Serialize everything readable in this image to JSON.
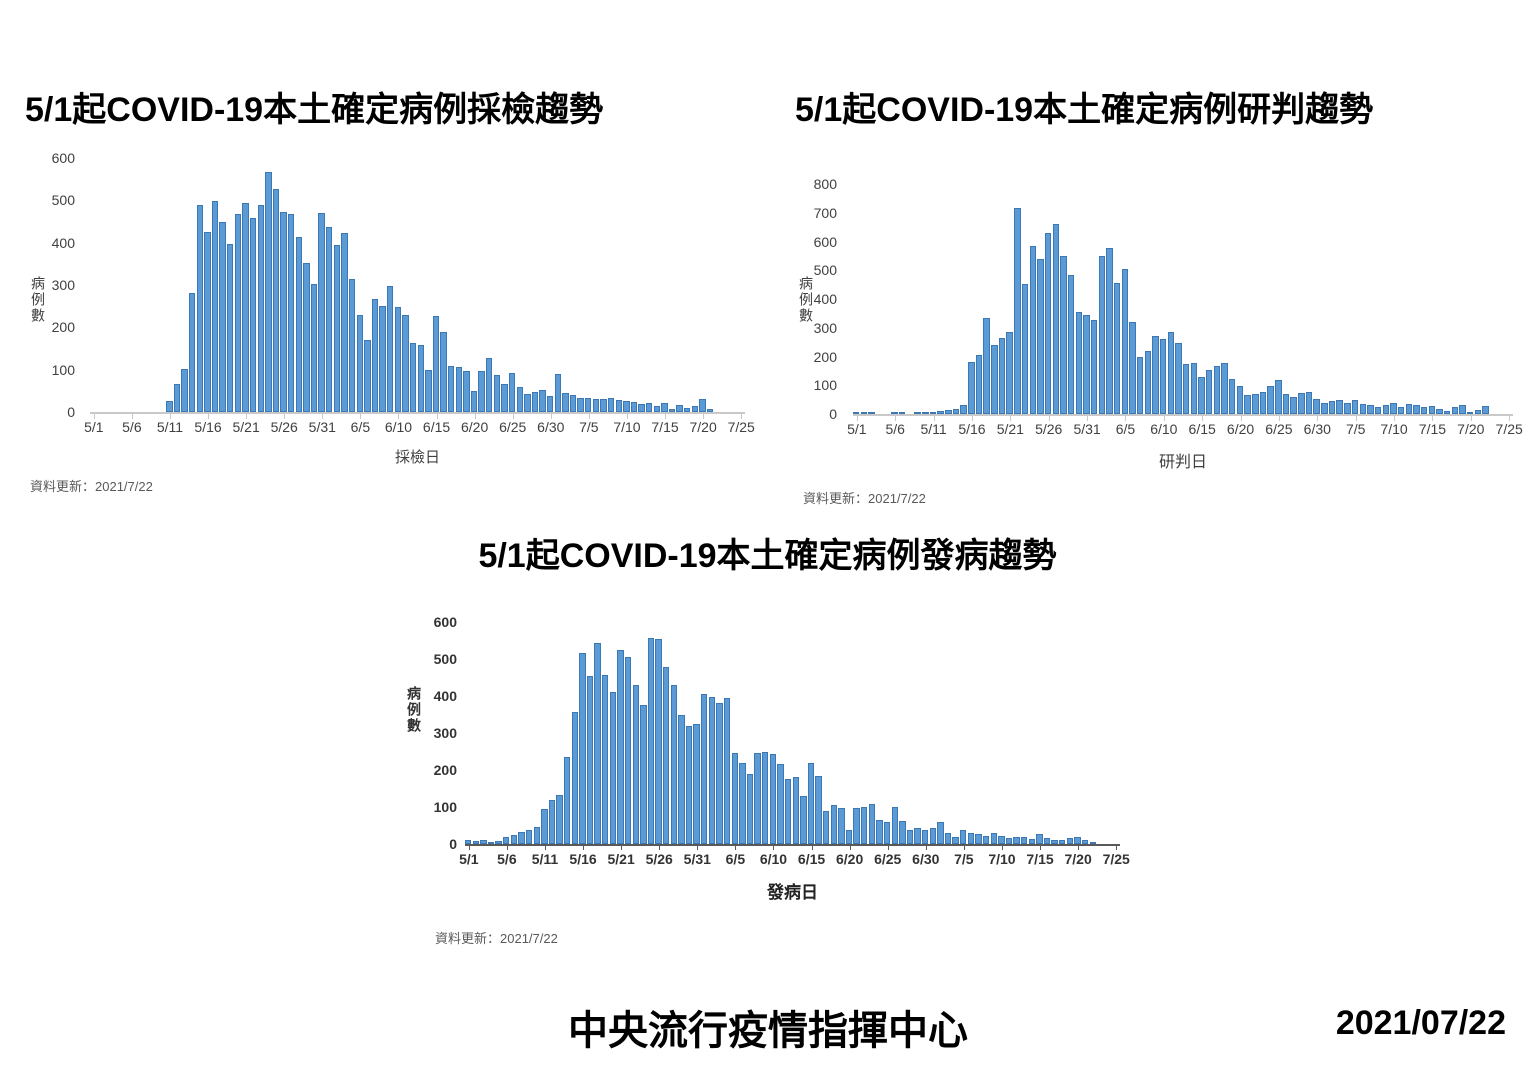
{
  "page": {
    "footer_org": "中央流行疫情指揮中心",
    "footer_date": "2021/07/22"
  },
  "colors": {
    "bar_fill": "#5b9bd5",
    "bar_border": "#3e78b4",
    "axis_light": "#c9c9c9",
    "axis_dark": "#595959",
    "text": "#404040"
  },
  "chart_data": [
    {
      "id": "sampling-trend",
      "type": "bar",
      "title": "5/1起COVID-19本土確定病例採檢趨勢",
      "ylabel": "病例數",
      "xlabel": "採檢日",
      "note": "資料更新：2021/7/22",
      "ylim": [
        0,
        600
      ],
      "y_ticks": [
        0,
        100,
        200,
        300,
        400,
        500,
        600
      ],
      "x_ticks": [
        "5/1",
        "5/6",
        "5/11",
        "5/16",
        "5/21",
        "5/26",
        "5/31",
        "6/5",
        "6/10",
        "6/15",
        "6/20",
        "6/25",
        "6/30",
        "7/5",
        "7/10",
        "7/15",
        "7/20",
        "7/25"
      ],
      "axis_days": 86,
      "x": [
        "5/1",
        "5/2",
        "5/3",
        "5/4",
        "5/5",
        "5/6",
        "5/7",
        "5/8",
        "5/9",
        "5/10",
        "5/11",
        "5/12",
        "5/13",
        "5/14",
        "5/15",
        "5/16",
        "5/17",
        "5/18",
        "5/19",
        "5/20",
        "5/21",
        "5/22",
        "5/23",
        "5/24",
        "5/25",
        "5/26",
        "5/27",
        "5/28",
        "5/29",
        "5/30",
        "5/31",
        "6/1",
        "6/2",
        "6/3",
        "6/4",
        "6/5",
        "6/6",
        "6/7",
        "6/8",
        "6/9",
        "6/10",
        "6/11",
        "6/12",
        "6/13",
        "6/14",
        "6/15",
        "6/16",
        "6/17",
        "6/18",
        "6/19",
        "6/20",
        "6/21",
        "6/22",
        "6/23",
        "6/24",
        "6/25",
        "6/26",
        "6/27",
        "6/28",
        "6/29",
        "6/30",
        "7/1",
        "7/2",
        "7/3",
        "7/4",
        "7/5",
        "7/6",
        "7/7",
        "7/8",
        "7/9",
        "7/10",
        "7/11",
        "7/12",
        "7/13",
        "7/14",
        "7/15",
        "7/16",
        "7/17",
        "7/18",
        "7/19",
        "7/20",
        "7/21",
        "7/22"
      ],
      "values": [
        0,
        0,
        0,
        0,
        0,
        0,
        0,
        0,
        0,
        0,
        25,
        65,
        102,
        282,
        490,
        425,
        498,
        448,
        396,
        468,
        494,
        458,
        490,
        566,
        526,
        472,
        468,
        414,
        352,
        302,
        470,
        438,
        394,
        424,
        314,
        228,
        170,
        266,
        250,
        298,
        248,
        230,
        162,
        158,
        100,
        226,
        190,
        108,
        106,
        96,
        50,
        96,
        128,
        88,
        66,
        92,
        58,
        42,
        48,
        52,
        38,
        90,
        46,
        40,
        34,
        32,
        30,
        30,
        32,
        28,
        26,
        24,
        20,
        22,
        14,
        22,
        6,
        16,
        10,
        14,
        30,
        8,
        0
      ]
    },
    {
      "id": "judgment-trend",
      "type": "bar",
      "title": "5/1起COVID-19本土確定病例研判趨勢",
      "ylabel": "病例數",
      "xlabel": "研判日",
      "note": "資料更新：2021/7/22",
      "ylim": [
        0,
        800
      ],
      "y_ticks": [
        0,
        100,
        200,
        300,
        400,
        500,
        600,
        700,
        800
      ],
      "x_ticks": [
        "5/1",
        "5/6",
        "5/11",
        "5/16",
        "5/21",
        "5/26",
        "5/31",
        "6/5",
        "6/10",
        "6/15",
        "6/20",
        "6/25",
        "6/30",
        "7/5",
        "7/10",
        "7/15",
        "7/20",
        "7/25"
      ],
      "axis_days": 86,
      "x": [
        "5/1",
        "5/2",
        "5/3",
        "5/4",
        "5/5",
        "5/6",
        "5/7",
        "5/8",
        "5/9",
        "5/10",
        "5/11",
        "5/12",
        "5/13",
        "5/14",
        "5/15",
        "5/16",
        "5/17",
        "5/18",
        "5/19",
        "5/20",
        "5/21",
        "5/22",
        "5/23",
        "5/24",
        "5/25",
        "5/26",
        "5/27",
        "5/28",
        "5/29",
        "5/30",
        "5/31",
        "6/1",
        "6/2",
        "6/3",
        "6/4",
        "6/5",
        "6/6",
        "6/7",
        "6/8",
        "6/9",
        "6/10",
        "6/11",
        "6/12",
        "6/13",
        "6/14",
        "6/15",
        "6/16",
        "6/17",
        "6/18",
        "6/19",
        "6/20",
        "6/21",
        "6/22",
        "6/23",
        "6/24",
        "6/25",
        "6/26",
        "6/27",
        "6/28",
        "6/29",
        "6/30",
        "7/1",
        "7/2",
        "7/3",
        "7/4",
        "7/5",
        "7/6",
        "7/7",
        "7/8",
        "7/9",
        "7/10",
        "7/11",
        "7/12",
        "7/13",
        "7/14",
        "7/15",
        "7/16",
        "7/17",
        "7/18",
        "7/19",
        "7/20",
        "7/21",
        "7/22"
      ],
      "values": [
        3,
        4,
        4,
        0,
        0,
        3,
        2,
        0,
        3,
        3,
        8,
        12,
        14,
        18,
        32,
        180,
        205,
        335,
        240,
        265,
        287,
        718,
        452,
        585,
        540,
        630,
        662,
        550,
        484,
        355,
        344,
        327,
        548,
        578,
        454,
        506,
        320,
        200,
        219,
        272,
        262,
        285,
        248,
        174,
        178,
        128,
        154,
        168,
        176,
        122,
        98,
        66,
        70,
        76,
        98,
        118,
        70,
        60,
        72,
        76,
        52,
        40,
        46,
        48,
        38,
        50,
        34,
        30,
        26,
        30,
        40,
        26,
        34,
        30,
        24,
        28,
        18,
        10,
        26,
        32,
        8,
        14,
        28
      ]
    },
    {
      "id": "onset-trend",
      "type": "bar",
      "title": "5/1起COVID-19本土確定病例發病趨勢",
      "ylabel": "病例數",
      "xlabel": "發病日",
      "note": "資料更新：2021/7/22",
      "ylim": [
        0,
        600
      ],
      "y_ticks": [
        0,
        100,
        200,
        300,
        400,
        500,
        600
      ],
      "x_ticks": [
        "5/1",
        "5/6",
        "5/11",
        "5/16",
        "5/21",
        "5/26",
        "5/31",
        "6/5",
        "6/10",
        "6/15",
        "6/20",
        "6/25",
        "6/30",
        "7/5",
        "7/10",
        "7/15",
        "7/20",
        "7/25"
      ],
      "axis_days": 86,
      "x": [
        "5/1",
        "5/2",
        "5/3",
        "5/4",
        "5/5",
        "5/6",
        "5/7",
        "5/8",
        "5/9",
        "5/10",
        "5/11",
        "5/12",
        "5/13",
        "5/14",
        "5/15",
        "5/16",
        "5/17",
        "5/18",
        "5/19",
        "5/20",
        "5/21",
        "5/22",
        "5/23",
        "5/24",
        "5/25",
        "5/26",
        "5/27",
        "5/28",
        "5/29",
        "5/30",
        "5/31",
        "6/1",
        "6/2",
        "6/3",
        "6/4",
        "6/5",
        "6/6",
        "6/7",
        "6/8",
        "6/9",
        "6/10",
        "6/11",
        "6/12",
        "6/13",
        "6/14",
        "6/15",
        "6/16",
        "6/17",
        "6/18",
        "6/19",
        "6/20",
        "6/21",
        "6/22",
        "6/23",
        "6/24",
        "6/25",
        "6/26",
        "6/27",
        "6/28",
        "6/29",
        "6/30",
        "7/1",
        "7/2",
        "7/3",
        "7/4",
        "7/5",
        "7/6",
        "7/7",
        "7/8",
        "7/9",
        "7/10",
        "7/11",
        "7/12",
        "7/13",
        "7/14",
        "7/15",
        "7/16",
        "7/17",
        "7/18",
        "7/19",
        "7/20",
        "7/21",
        "7/22"
      ],
      "values": [
        12,
        8,
        10,
        3,
        8,
        18,
        25,
        32,
        38,
        45,
        95,
        120,
        132,
        235,
        358,
        515,
        455,
        543,
        458,
        410,
        525,
        505,
        430,
        375,
        558,
        555,
        478,
        430,
        348,
        318,
        325,
        405,
        398,
        380,
        395,
        245,
        220,
        190,
        245,
        250,
        243,
        215,
        175,
        180,
        130,
        220,
        185,
        90,
        106,
        96,
        38,
        96,
        100,
        108,
        66,
        60,
        100,
        62,
        38,
        42,
        38,
        44,
        60,
        30,
        20,
        38,
        30,
        28,
        22,
        30,
        22,
        16,
        18,
        20,
        14,
        28,
        16,
        12,
        10,
        16,
        18,
        10,
        6
      ]
    }
  ]
}
